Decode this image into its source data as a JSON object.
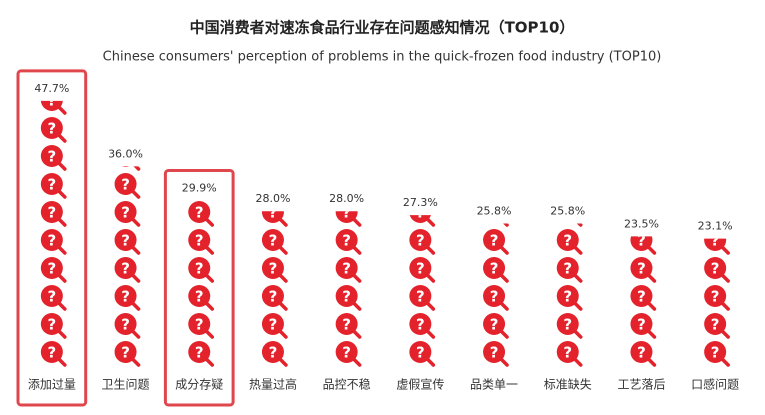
{
  "chart_data": {
    "type": "pictograph",
    "title": "中国消费者对速冻食品行业存在问题感知情况（TOP10）",
    "subtitle": "Chinese consumers' perception of problems in the quick-frozen food industry (TOP10)",
    "categories": [
      "添加过量",
      "卫生问题",
      "成分存疑",
      "热量过高",
      "品控不稳",
      "虚假宣传",
      "品类单一",
      "标准缺失",
      "工艺落后",
      "口感问题"
    ],
    "values": [
      47.7,
      36.0,
      29.9,
      28.0,
      28.0,
      27.3,
      25.8,
      25.8,
      23.5,
      23.1
    ],
    "value_labels": [
      "47.7%",
      "36.0%",
      "29.9%",
      "28.0%",
      "28.0%",
      "27.3%",
      "25.8%",
      "25.8%",
      "23.5%",
      "23.1%"
    ],
    "color": "#e3222b",
    "highlighted": [
      0,
      2
    ],
    "highlight_color": "#e0474c"
  }
}
